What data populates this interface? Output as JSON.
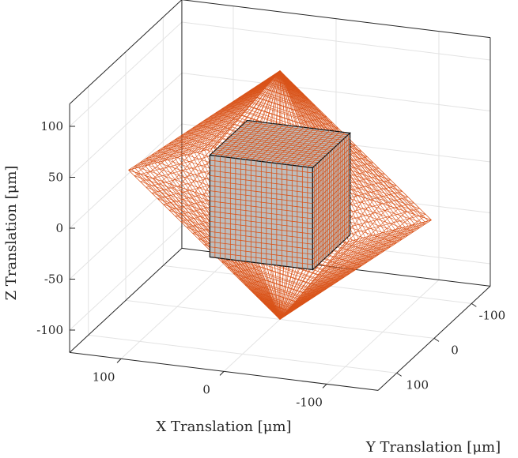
{
  "chart_data": {
    "type": "surface3d",
    "xlabel": "X Translation [μm]",
    "ylabel": "Y Translation [μm]",
    "zlabel": "Z Translation [μm]",
    "xlim": [
      -150,
      150
    ],
    "ylim": [
      -150,
      150
    ],
    "zlim": [
      -122,
      122
    ],
    "xticks": [
      {
        "v": 100,
        "label": "100"
      },
      {
        "v": 0,
        "label": "0"
      },
      {
        "v": -100,
        "label": "-100"
      }
    ],
    "yticks": [
      {
        "v": -100,
        "label": "-100"
      },
      {
        "v": 0,
        "label": "0"
      },
      {
        "v": 100,
        "label": "100"
      }
    ],
    "zticks": [
      {
        "v": 100,
        "label": "100"
      },
      {
        "v": 50,
        "label": "50"
      },
      {
        "v": 0,
        "label": "0"
      },
      {
        "v": -50,
        "label": "-50"
      },
      {
        "v": -100,
        "label": "-100"
      }
    ],
    "grid": true,
    "series": [
      {
        "kind": "mesh",
        "shape": "octahedron-hull",
        "edge_color": "#D95319",
        "vertices": [
          [
            0,
            0,
            122
          ],
          [
            0,
            0,
            -122
          ],
          [
            108,
            108,
            48
          ],
          [
            -100,
            100,
            0
          ],
          [
            -108,
            -108,
            -48
          ],
          [
            100,
            -100,
            0
          ]
        ]
      },
      {
        "kind": "surface",
        "shape": "cube",
        "half_size": 50,
        "face_color": "#BDBDBD",
        "edge_color": "#D95319"
      }
    ]
  }
}
